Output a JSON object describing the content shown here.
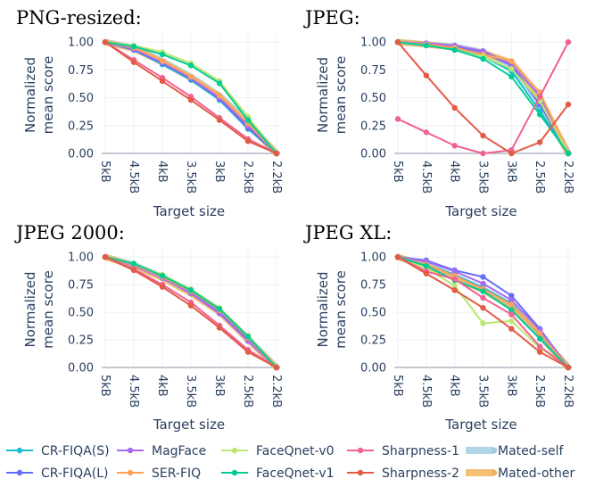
{
  "chart_data": [
    {
      "type": "line",
      "title": "PNG-resized:",
      "xlabel": "Target size",
      "ylabel": "Normalized mean score",
      "categories": [
        "5kB",
        "4.5kB",
        "4kB",
        "3.5kB",
        "3kB",
        "2.5kB",
        "2.2kB"
      ],
      "ylim": [
        0,
        1.05
      ],
      "yticks": [
        "0.00",
        "0.25",
        "0.50",
        "0.75",
        "1.00"
      ],
      "grid": true,
      "series": [
        {
          "name": "Mated-self",
          "values": [
            1.0,
            0.95,
            0.83,
            0.69,
            0.52,
            0.28,
            0.0
          ]
        },
        {
          "name": "Mated-other",
          "values": [
            1.0,
            0.94,
            0.82,
            0.68,
            0.51,
            0.26,
            0.0
          ]
        },
        {
          "name": "CR-FIQA(S)",
          "values": [
            1.0,
            0.93,
            0.8,
            0.66,
            0.48,
            0.22,
            0.0
          ]
        },
        {
          "name": "CR-FIQA(L)",
          "values": [
            1.0,
            0.93,
            0.81,
            0.67,
            0.49,
            0.23,
            0.0
          ]
        },
        {
          "name": "MagFace",
          "values": [
            1.0,
            0.94,
            0.82,
            0.68,
            0.5,
            0.25,
            0.0
          ]
        },
        {
          "name": "SER-FIQ",
          "values": [
            1.0,
            0.95,
            0.83,
            0.69,
            0.52,
            0.27,
            0.0
          ]
        },
        {
          "name": "FaceQnet-v0",
          "values": [
            1.0,
            0.97,
            0.91,
            0.81,
            0.65,
            0.33,
            0.0
          ]
        },
        {
          "name": "FaceQnet-v1",
          "values": [
            1.0,
            0.96,
            0.89,
            0.79,
            0.63,
            0.3,
            0.0
          ]
        },
        {
          "name": "Sharpness-1",
          "values": [
            1.0,
            0.84,
            0.68,
            0.51,
            0.32,
            0.13,
            0.0
          ]
        },
        {
          "name": "Sharpness-2",
          "values": [
            1.0,
            0.82,
            0.65,
            0.48,
            0.3,
            0.11,
            0.0
          ]
        }
      ]
    },
    {
      "type": "line",
      "title": "JPEG:",
      "xlabel": "Target size",
      "ylabel": "Normalized mean score",
      "categories": [
        "5kB",
        "4.5kB",
        "4kB",
        "3.5kB",
        "3kB",
        "2.5kB",
        "2.2kB"
      ],
      "ylim": [
        0,
        1.05
      ],
      "yticks": [
        "0.00",
        "0.25",
        "0.50",
        "0.75",
        "1.00"
      ],
      "grid": true,
      "series": [
        {
          "name": "Mated-self",
          "values": [
            1.0,
            0.98,
            0.96,
            0.91,
            0.8,
            0.45,
            0.0
          ]
        },
        {
          "name": "Mated-other",
          "values": [
            1.0,
            0.98,
            0.95,
            0.9,
            0.82,
            0.5,
            0.0
          ]
        },
        {
          "name": "CR-FIQA(S)",
          "values": [
            1.0,
            0.97,
            0.94,
            0.87,
            0.74,
            0.38,
            0.0
          ]
        },
        {
          "name": "CR-FIQA(L)",
          "values": [
            1.0,
            0.98,
            0.96,
            0.91,
            0.79,
            0.44,
            0.0
          ]
        },
        {
          "name": "MagFace",
          "values": [
            1.0,
            0.99,
            0.97,
            0.92,
            0.8,
            0.52,
            0.0
          ]
        },
        {
          "name": "SER-FIQ",
          "values": [
            1.0,
            0.98,
            0.95,
            0.89,
            0.83,
            0.55,
            0.0
          ]
        },
        {
          "name": "FaceQnet-v0",
          "values": [
            1.0,
            0.97,
            0.93,
            0.87,
            0.76,
            0.47,
            0.0
          ]
        },
        {
          "name": "FaceQnet-v1",
          "values": [
            1.0,
            0.97,
            0.93,
            0.85,
            0.69,
            0.35,
            0.0
          ]
        },
        {
          "name": "Sharpness-1",
          "values": [
            0.31,
            0.19,
            0.07,
            0.0,
            0.03,
            0.51,
            1.0
          ]
        },
        {
          "name": "Sharpness-2",
          "values": [
            1.0,
            0.7,
            0.41,
            0.16,
            0.0,
            0.1,
            0.44
          ]
        }
      ]
    },
    {
      "type": "line",
      "title": "JPEG 2000:",
      "xlabel": "Target size",
      "ylabel": "Normalized mean score",
      "categories": [
        "5kB",
        "4.5kB",
        "4kB",
        "3.5kB",
        "3kB",
        "2.5kB",
        "2.2kB"
      ],
      "ylim": [
        0,
        1.05
      ],
      "yticks": [
        "0.00",
        "0.25",
        "0.50",
        "0.75",
        "1.00"
      ],
      "grid": true,
      "series": [
        {
          "name": "Mated-self",
          "values": [
            1.0,
            0.93,
            0.82,
            0.68,
            0.51,
            0.26,
            0.0
          ]
        },
        {
          "name": "Mated-other",
          "values": [
            1.0,
            0.92,
            0.81,
            0.67,
            0.5,
            0.25,
            0.0
          ]
        },
        {
          "name": "CR-FIQA(S)",
          "values": [
            1.0,
            0.93,
            0.83,
            0.69,
            0.51,
            0.27,
            0.0
          ]
        },
        {
          "name": "CR-FIQA(L)",
          "values": [
            1.0,
            0.93,
            0.82,
            0.68,
            0.5,
            0.26,
            0.0
          ]
        },
        {
          "name": "MagFace",
          "values": [
            1.0,
            0.92,
            0.81,
            0.67,
            0.49,
            0.24,
            0.0
          ]
        },
        {
          "name": "SER-FIQ",
          "values": [
            1.0,
            0.93,
            0.82,
            0.69,
            0.52,
            0.27,
            0.0
          ]
        },
        {
          "name": "FaceQnet-v0",
          "values": [
            1.0,
            0.94,
            0.84,
            0.71,
            0.54,
            0.29,
            0.0
          ]
        },
        {
          "name": "FaceQnet-v1",
          "values": [
            1.0,
            0.94,
            0.83,
            0.7,
            0.53,
            0.28,
            0.0
          ]
        },
        {
          "name": "Sharpness-1",
          "values": [
            1.0,
            0.89,
            0.75,
            0.59,
            0.38,
            0.16,
            0.0
          ]
        },
        {
          "name": "Sharpness-2",
          "values": [
            1.0,
            0.88,
            0.73,
            0.56,
            0.36,
            0.14,
            0.0
          ]
        }
      ]
    },
    {
      "type": "line",
      "title": "JPEG XL:",
      "xlabel": "Target size",
      "ylabel": "Normalized mean score",
      "categories": [
        "5kB",
        "4.5kB",
        "4kB",
        "3.5kB",
        "3kB",
        "2.5kB",
        "2.2kB"
      ],
      "ylim": [
        0,
        1.05
      ],
      "yticks": [
        "0.00",
        "0.25",
        "0.50",
        "0.75",
        "1.00"
      ],
      "grid": true,
      "series": [
        {
          "name": "Mated-self",
          "values": [
            1.0,
            0.93,
            0.82,
            0.71,
            0.56,
            0.3,
            0.0
          ]
        },
        {
          "name": "Mated-other",
          "values": [
            1.0,
            0.92,
            0.81,
            0.7,
            0.55,
            0.29,
            0.0
          ]
        },
        {
          "name": "CR-FIQA(S)",
          "values": [
            1.0,
            0.93,
            0.84,
            0.72,
            0.58,
            0.3,
            0.0
          ]
        },
        {
          "name": "CR-FIQA(L)",
          "values": [
            1.0,
            0.97,
            0.88,
            0.82,
            0.65,
            0.35,
            0.0
          ]
        },
        {
          "name": "MagFace",
          "values": [
            1.0,
            0.96,
            0.87,
            0.76,
            0.61,
            0.34,
            0.0
          ]
        },
        {
          "name": "SER-FIQ",
          "values": [
            1.0,
            0.93,
            0.83,
            0.71,
            0.57,
            0.31,
            0.0
          ]
        },
        {
          "name": "FaceQnet-v0",
          "values": [
            1.0,
            0.9,
            0.74,
            0.4,
            0.42,
            0.18,
            0.0
          ]
        },
        {
          "name": "FaceQnet-v1",
          "values": [
            1.0,
            0.92,
            0.79,
            0.69,
            0.52,
            0.26,
            0.0
          ]
        },
        {
          "name": "Sharpness-1",
          "values": [
            1.0,
            0.87,
            0.8,
            0.63,
            0.48,
            0.19,
            0.0
          ]
        },
        {
          "name": "Sharpness-2",
          "values": [
            1.0,
            0.85,
            0.7,
            0.54,
            0.35,
            0.14,
            0.0
          ]
        }
      ]
    }
  ],
  "legend": {
    "placement": "bottom",
    "items": [
      {
        "name": "CR-FIQA(S)",
        "color": "#17becf",
        "style": "line-marker"
      },
      {
        "name": "MagFace",
        "color": "#a56bf0",
        "style": "line-marker"
      },
      {
        "name": "FaceQnet-v0",
        "color": "#bce672",
        "style": "line-marker"
      },
      {
        "name": "Sharpness-1",
        "color": "#f06292",
        "style": "line-marker"
      },
      {
        "name": "Mated-self",
        "color": "#9ecae1",
        "style": "band"
      },
      {
        "name": "CR-FIQA(L)",
        "color": "#636efa",
        "style": "line-marker"
      },
      {
        "name": "SER-FIQ",
        "color": "#ffa15a",
        "style": "line-marker"
      },
      {
        "name": "FaceQnet-v1",
        "color": "#00cc96",
        "style": "line-marker"
      },
      {
        "name": "Sharpness-2",
        "color": "#e45b45",
        "style": "line-marker"
      },
      {
        "name": "Mated-other",
        "color": "#f2b155",
        "style": "band"
      }
    ]
  }
}
